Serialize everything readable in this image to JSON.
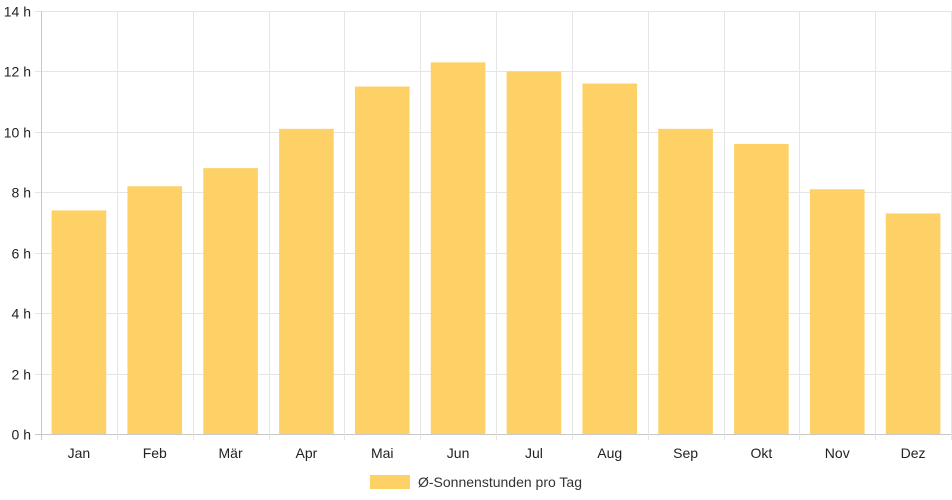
{
  "chart_data": {
    "type": "bar",
    "categories": [
      "Jan",
      "Feb",
      "Mär",
      "Apr",
      "Mai",
      "Jun",
      "Jul",
      "Aug",
      "Sep",
      "Okt",
      "Nov",
      "Dez"
    ],
    "series": [
      {
        "name": "Ø-Sonnenstunden pro Tag",
        "values": [
          7.4,
          8.2,
          8.8,
          10.1,
          11.5,
          12.3,
          12.0,
          11.6,
          10.1,
          9.6,
          8.1,
          7.3
        ]
      }
    ],
    "y_unit_suffix": " h",
    "ylim": [
      0,
      14
    ],
    "y_ticks": [
      0,
      2,
      4,
      6,
      8,
      10,
      12,
      14
    ],
    "grid": true,
    "legend_position": "bottom",
    "colors": {
      "bar": "#fdd166",
      "grid": "#e5e5e5",
      "axis": "#c8c8c8"
    }
  }
}
